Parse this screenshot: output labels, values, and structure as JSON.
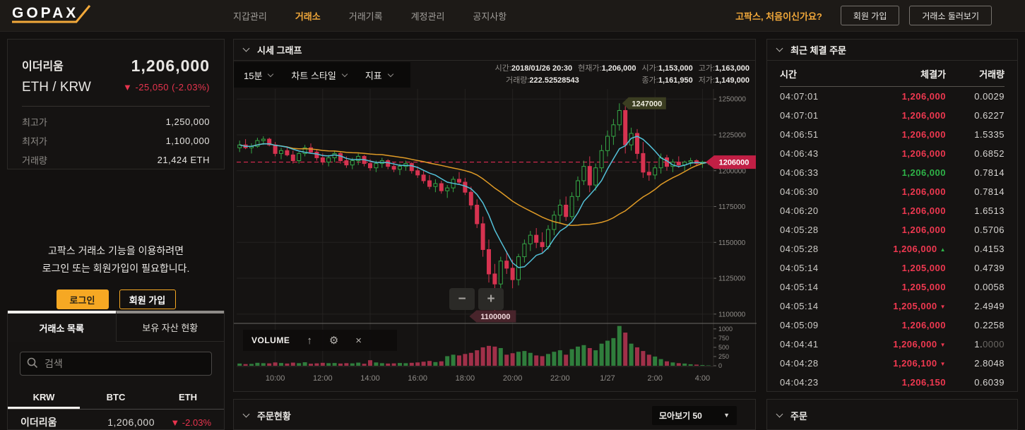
{
  "header": {
    "logo_text": "GOPAX",
    "nav": [
      {
        "label": "지갑관리",
        "active": false
      },
      {
        "label": "거래소",
        "active": true
      },
      {
        "label": "거래기록",
        "active": false
      },
      {
        "label": "계정관리",
        "active": false
      },
      {
        "label": "공지사항",
        "active": false
      }
    ],
    "prompt": "고팍스, 처음이신가요?",
    "signup_label": "회원 가입",
    "tour_label": "거래소 둘러보기"
  },
  "ticker": {
    "coin_name": "이더리움",
    "pair": "ETH / KRW",
    "price": "1,206,000",
    "change": "▼ -25,050 (-2.03%)",
    "stats": [
      {
        "label": "최고가",
        "value": "1,250,000"
      },
      {
        "label": "최저가",
        "value": "1,100,000"
      },
      {
        "label": "거래량",
        "value": "21,424 ETH"
      }
    ]
  },
  "login_cta": {
    "line1": "고팍스 거래소 기능을 이용하려면",
    "line2": "로그인 또는 회원가입이 필요합니다.",
    "login_label": "로그인",
    "signup_label": "회원 가입"
  },
  "market_panel": {
    "tabs": [
      {
        "label": "거래소 목록",
        "active": true
      },
      {
        "label": "보유 자산 현황",
        "active": false
      }
    ],
    "search_placeholder": "검색",
    "currency_tabs": [
      {
        "label": "KRW",
        "active": true
      },
      {
        "label": "BTC",
        "active": false
      },
      {
        "label": "ETH",
        "active": false
      }
    ],
    "coins": [
      {
        "name": "이더리움",
        "price": "1,206,000",
        "change": "▼ -2.03%"
      }
    ]
  },
  "chart_panel": {
    "title": "시세 그래프",
    "toolbar": {
      "interval": "15분",
      "style": "차트 스타일",
      "indicator": "지표"
    },
    "info": {
      "time_label": "시간:",
      "time": "2018/01/26 20:30",
      "current_label": "현재가:",
      "current": "1,206,000",
      "open_label": "시가:",
      "open": "1,153,000",
      "high_label": "고가:",
      "high": "1,163,000",
      "volume_label": "거래량:",
      "volume": "222.52528543",
      "close_label": "종가:",
      "close": "1,161,950",
      "low_label": "저가:",
      "low": "1,149,000"
    },
    "volume_pane_label": "VOLUME"
  },
  "chart_data": {
    "type": "candlestick",
    "title": "시세 그래프",
    "interval": "15분",
    "price_scale": 1000,
    "y_ticks": [
      1250000,
      1225000,
      1200000,
      1175000,
      1150000,
      1125000,
      1100000
    ],
    "y_range": [
      1094500,
      1257000
    ],
    "x_labels": [
      "10:00",
      "12:00",
      "14:00",
      "16:00",
      "18:00",
      "20:00",
      "22:00",
      "1/27",
      "2:00",
      "4:00"
    ],
    "x_label_indices": [
      6,
      14,
      22,
      30,
      38,
      46,
      54,
      62,
      70,
      78
    ],
    "volume_ticks": [
      1000,
      750,
      500,
      250,
      0
    ],
    "volume_max": 1150,
    "current_price": 1206000,
    "current_price_label": "1206000",
    "high_tag_label": "1247000",
    "low_tag_label": "1100000",
    "candles": [
      [
        1216,
        1221,
        1213,
        1218,
        60
      ],
      [
        1218,
        1222,
        1215,
        1216,
        45
      ],
      [
        1216,
        1219,
        1212,
        1217,
        50
      ],
      [
        1217,
        1223,
        1216,
        1221,
        80
      ],
      [
        1221,
        1224,
        1218,
        1222,
        70
      ],
      [
        1222,
        1223,
        1217,
        1218,
        65
      ],
      [
        1218,
        1220,
        1210,
        1212,
        90
      ],
      [
        1212,
        1216,
        1208,
        1214,
        75
      ],
      [
        1214,
        1217,
        1210,
        1211,
        60
      ],
      [
        1211,
        1214,
        1205,
        1207,
        85
      ],
      [
        1207,
        1213,
        1205,
        1212,
        70
      ],
      [
        1212,
        1218,
        1210,
        1216,
        95
      ],
      [
        1216,
        1219,
        1212,
        1213,
        55
      ],
      [
        1213,
        1215,
        1207,
        1209,
        65
      ],
      [
        1209,
        1212,
        1204,
        1206,
        80
      ],
      [
        1206,
        1211,
        1203,
        1209,
        70
      ],
      [
        1209,
        1214,
        1206,
        1212,
        75
      ],
      [
        1212,
        1213,
        1205,
        1207,
        60
      ],
      [
        1207,
        1210,
        1202,
        1204,
        70
      ],
      [
        1204,
        1209,
        1201,
        1207,
        65
      ],
      [
        1207,
        1212,
        1204,
        1210,
        85
      ],
      [
        1210,
        1211,
        1203,
        1205,
        55
      ],
      [
        1205,
        1208,
        1200,
        1202,
        150
      ],
      [
        1202,
        1207,
        1199,
        1205,
        90
      ],
      [
        1205,
        1209,
        1202,
        1207,
        70
      ],
      [
        1207,
        1208,
        1201,
        1203,
        60
      ],
      [
        1203,
        1206,
        1199,
        1201,
        65
      ],
      [
        1201,
        1205,
        1197,
        1203,
        75
      ],
      [
        1203,
        1207,
        1200,
        1205,
        70
      ],
      [
        1205,
        1206,
        1198,
        1200,
        80
      ],
      [
        1200,
        1203,
        1195,
        1197,
        90
      ],
      [
        1197,
        1200,
        1191,
        1193,
        110
      ],
      [
        1193,
        1197,
        1187,
        1189,
        130
      ],
      [
        1189,
        1194,
        1185,
        1191,
        100
      ],
      [
        1191,
        1193,
        1184,
        1186,
        120
      ],
      [
        1186,
        1190,
        1181,
        1188,
        260
      ],
      [
        1188,
        1196,
        1185,
        1194,
        300
      ],
      [
        1194,
        1199,
        1190,
        1192,
        280
      ],
      [
        1192,
        1195,
        1183,
        1185,
        320
      ],
      [
        1185,
        1189,
        1173,
        1176,
        350
      ],
      [
        1176,
        1180,
        1160,
        1163,
        420
      ],
      [
        1163,
        1168,
        1140,
        1145,
        500
      ],
      [
        1145,
        1152,
        1122,
        1128,
        540
      ],
      [
        1128,
        1135,
        1100,
        1121,
        520
      ],
      [
        1121,
        1140,
        1112,
        1137,
        480
      ],
      [
        1137,
        1144,
        1128,
        1132,
        300
      ],
      [
        1132,
        1138,
        1118,
        1124,
        340
      ],
      [
        1124,
        1142,
        1120,
        1140,
        380
      ],
      [
        1140,
        1152,
        1136,
        1149,
        400
      ],
      [
        1149,
        1158,
        1144,
        1155,
        350
      ],
      [
        1155,
        1160,
        1146,
        1150,
        280
      ],
      [
        1150,
        1157,
        1143,
        1147,
        260
      ],
      [
        1147,
        1162,
        1145,
        1159,
        320
      ],
      [
        1159,
        1172,
        1155,
        1169,
        380
      ],
      [
        1169,
        1180,
        1163,
        1176,
        420
      ],
      [
        1176,
        1182,
        1165,
        1168,
        300
      ],
      [
        1168,
        1185,
        1166,
        1182,
        450
      ],
      [
        1182,
        1196,
        1179,
        1193,
        520
      ],
      [
        1193,
        1207,
        1190,
        1203,
        560
      ],
      [
        1203,
        1210,
        1185,
        1190,
        480
      ],
      [
        1190,
        1205,
        1186,
        1202,
        420
      ],
      [
        1202,
        1218,
        1199,
        1214,
        600
      ],
      [
        1214,
        1228,
        1210,
        1224,
        680
      ],
      [
        1224,
        1236,
        1218,
        1232,
        750
      ],
      [
        1232,
        1247,
        1228,
        1242,
        1080
      ],
      [
        1242,
        1245,
        1212,
        1218,
        900
      ],
      [
        1218,
        1230,
        1214,
        1226,
        600
      ],
      [
        1226,
        1229,
        1208,
        1212,
        500
      ],
      [
        1212,
        1220,
        1195,
        1199,
        400
      ],
      [
        1199,
        1206,
        1193,
        1197,
        300
      ],
      [
        1197,
        1204,
        1194,
        1202,
        250
      ],
      [
        1202,
        1212,
        1198,
        1209,
        180
      ],
      [
        1209,
        1211,
        1200,
        1203,
        120
      ],
      [
        1203,
        1208,
        1199,
        1206,
        90
      ],
      [
        1206,
        1210,
        1202,
        1204,
        70
      ],
      [
        1204,
        1207,
        1200,
        1206,
        60
      ],
      [
        1206,
        1209,
        1203,
        1207,
        40
      ],
      [
        1207,
        1208,
        1203,
        1205,
        30
      ],
      [
        1205,
        1207,
        1202,
        1206,
        20
      ],
      [
        1206,
        1207,
        1204,
        1206,
        10
      ]
    ]
  },
  "trades_panel": {
    "title": "최근 체결 주문",
    "columns": [
      "시간",
      "체결가",
      "거래량"
    ],
    "rows": [
      {
        "time": "04:07:01",
        "price": "1,206,000",
        "side": "down",
        "vol": "0.0029"
      },
      {
        "time": "04:07:01",
        "price": "1,206,000",
        "side": "down",
        "vol": "0.6227"
      },
      {
        "time": "04:06:51",
        "price": "1,206,000",
        "side": "down",
        "vol": "1.5335"
      },
      {
        "time": "04:06:43",
        "price": "1,206,000",
        "side": "down",
        "vol": "0.6852"
      },
      {
        "time": "04:06:33",
        "price": "1,206,000",
        "side": "up",
        "vol": "0.7814"
      },
      {
        "time": "04:06:30",
        "price": "1,206,000",
        "side": "down",
        "vol": "0.7814"
      },
      {
        "time": "04:06:20",
        "price": "1,206,000",
        "side": "down",
        "vol": "1.6513"
      },
      {
        "time": "04:05:28",
        "price": "1,206,000",
        "side": "down",
        "vol": "0.5706"
      },
      {
        "time": "04:05:28",
        "price": "1,206,000",
        "side": "down",
        "arrow": "up",
        "vol": "0.4153"
      },
      {
        "time": "04:05:14",
        "price": "1,205,000",
        "side": "down",
        "vol": "0.4739"
      },
      {
        "time": "04:05:14",
        "price": "1,205,000",
        "side": "down",
        "vol": "0.0058"
      },
      {
        "time": "04:05:14",
        "price": "1,205,000",
        "side": "down",
        "arrow": "down",
        "vol": "2.4949"
      },
      {
        "time": "04:05:09",
        "price": "1,206,000",
        "side": "down",
        "vol": "0.2258"
      },
      {
        "time": "04:04:41",
        "price": "1,206,000",
        "side": "down",
        "arrow": "down",
        "vol": "1.",
        "vol_dim": "0000"
      },
      {
        "time": "04:04:28",
        "price": "1,206,100",
        "side": "down",
        "arrow": "down",
        "vol": "2.8048"
      },
      {
        "time": "04:04:23",
        "price": "1,206,150",
        "side": "down",
        "vol": "0.6039"
      }
    ]
  },
  "orders_panel": {
    "title": "주문현황",
    "group_select": "모아보기 50"
  },
  "order_panel": {
    "title": "주문"
  },
  "colors": {
    "accent_orange": "#f3a93a",
    "down_red": "#ef3850",
    "up_green": "#2eb348",
    "candle_red": "#d63350",
    "candle_green": "#35a747",
    "volume_red": "#a03049",
    "volume_green": "#2f7d3c",
    "ma_fast_cyan": "#53c1d8",
    "ma_slow_orange": "#e09b26",
    "price_tag_bg": "#c11f45",
    "high_tag_bg": "#3b3d21",
    "low_tag_bg": "#48242b",
    "dashed_line": "#d92b50"
  }
}
